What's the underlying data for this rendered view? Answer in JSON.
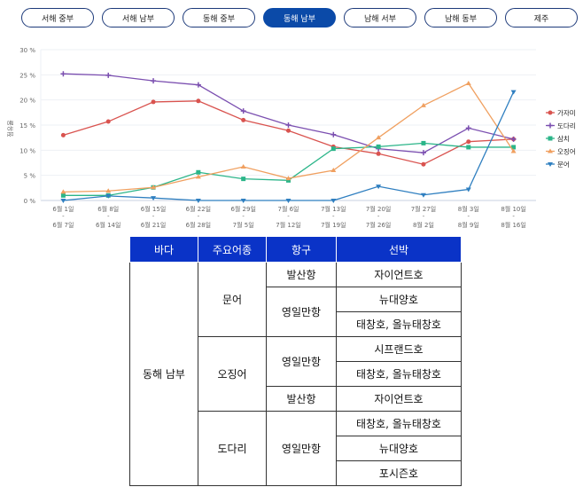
{
  "tabs": [
    "서해 중부",
    "서해 남부",
    "동해 중부",
    "동해 남부",
    "남해 서부",
    "남해 동부",
    "제주"
  ],
  "active_tab": 3,
  "chart_data": {
    "type": "line",
    "ylabel": "점유율",
    "ylim": [
      0,
      30
    ],
    "yticks": [
      "0 %",
      "5 %",
      "10 %",
      "15 %",
      "20 %",
      "25 %",
      "30 %"
    ],
    "categories": [
      [
        "6월 1일",
        "6월 7일"
      ],
      [
        "6월 8일",
        "6월 14일"
      ],
      [
        "6월 15일",
        "6월 21일"
      ],
      [
        "6월 22일",
        "6월 28일"
      ],
      [
        "6월 29일",
        "7월 5일"
      ],
      [
        "7월 6일",
        "7월 12일"
      ],
      [
        "7월 13일",
        "7월 19일"
      ],
      [
        "7월 20일",
        "7월 26일"
      ],
      [
        "7월 27일",
        "8월 2일"
      ],
      [
        "8월 3일",
        "8월 9일"
      ],
      [
        "8월 10일",
        "8월 16일"
      ]
    ],
    "series": [
      {
        "name": "가자미",
        "color": "#d9534f",
        "marker": "circle",
        "values": [
          13,
          15.7,
          19.6,
          19.8,
          16,
          13.9,
          10.7,
          9.3,
          7.2,
          11.7,
          12.2
        ]
      },
      {
        "name": "도다리",
        "color": "#7b4fb0",
        "marker": "plus",
        "values": [
          25.2,
          24.9,
          23.8,
          23,
          17.8,
          15,
          13.1,
          10.3,
          9.5,
          14.4,
          12.2
        ]
      },
      {
        "name": "삼치",
        "color": "#2bb589",
        "marker": "square",
        "values": [
          1,
          1,
          2.6,
          5.6,
          4.3,
          4,
          10.3,
          10.7,
          11.4,
          10.6,
          10.6
        ]
      },
      {
        "name": "오징어",
        "color": "#f0a060",
        "marker": "triangle",
        "values": [
          1.7,
          1.9,
          2.6,
          4.7,
          6.7,
          4.4,
          6,
          12.5,
          18.9,
          23.3,
          9.8
        ]
      },
      {
        "name": "문어",
        "color": "#2f7fc0",
        "marker": "tri-down",
        "values": [
          0,
          0.9,
          0.5,
          0,
          0,
          0,
          0,
          2.8,
          1.1,
          2.2,
          21.6
        ]
      }
    ],
    "legend": "right"
  },
  "table": {
    "headers": [
      "바다",
      "주요어종",
      "항구",
      "선박"
    ],
    "sea": "동해 남부",
    "species": [
      "문어",
      "오징어",
      "도다리"
    ],
    "ports": [
      "발산항",
      "영일만항",
      "영일만항",
      "발산항",
      "영일만항"
    ],
    "vessels": [
      "자이언트호",
      "뉴대양호",
      "태창호, 올뉴태창호",
      "시프랜드호",
      "태창호, 올뉴태창호",
      "자이언트호",
      "태창호, 올뉴태창호",
      "뉴대양호",
      "포시즌호"
    ]
  }
}
